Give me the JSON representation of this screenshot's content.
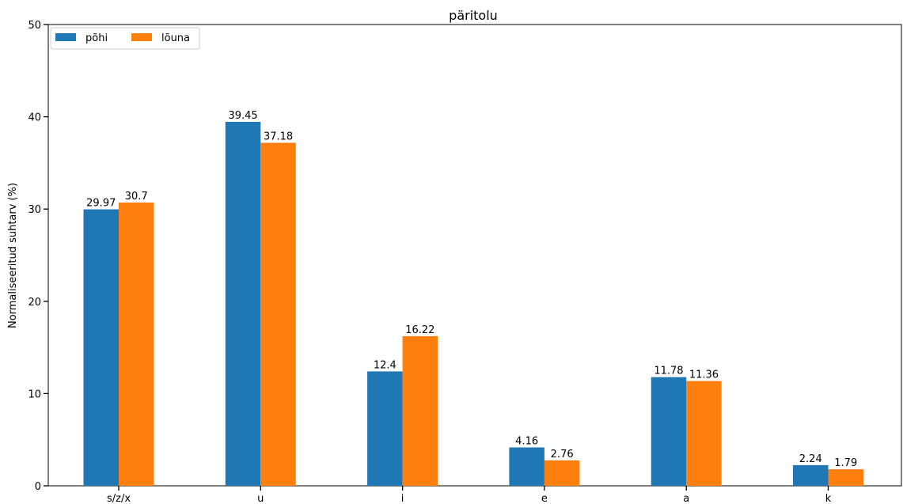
{
  "chart_data": {
    "type": "bar",
    "title": "päritolu",
    "xlabel": "",
    "ylabel": "Normaliseeritud suhtarv (%)",
    "ylim": [
      0,
      50
    ],
    "yticks": [
      "0",
      "10",
      "20",
      "30",
      "40",
      "50"
    ],
    "categories": [
      "s/z/x",
      "u",
      "i",
      "e",
      "a",
      "k"
    ],
    "series": [
      {
        "name": "põhi",
        "color": "#1f77b4",
        "values": [
          29.97,
          39.45,
          12.4,
          4.16,
          11.78,
          2.24
        ],
        "labels": [
          "29.97",
          "39.45",
          "12.4",
          "4.16",
          "11.78",
          "2.24"
        ]
      },
      {
        "name": "lõuna",
        "color": "#ff7f0e",
        "values": [
          30.7,
          37.18,
          16.22,
          2.76,
          11.36,
          1.79
        ],
        "labels": [
          "30.7",
          "37.18",
          "16.22",
          "2.76",
          "11.36",
          "1.79"
        ]
      }
    ],
    "legend_position": "top-left",
    "grid": false
  }
}
